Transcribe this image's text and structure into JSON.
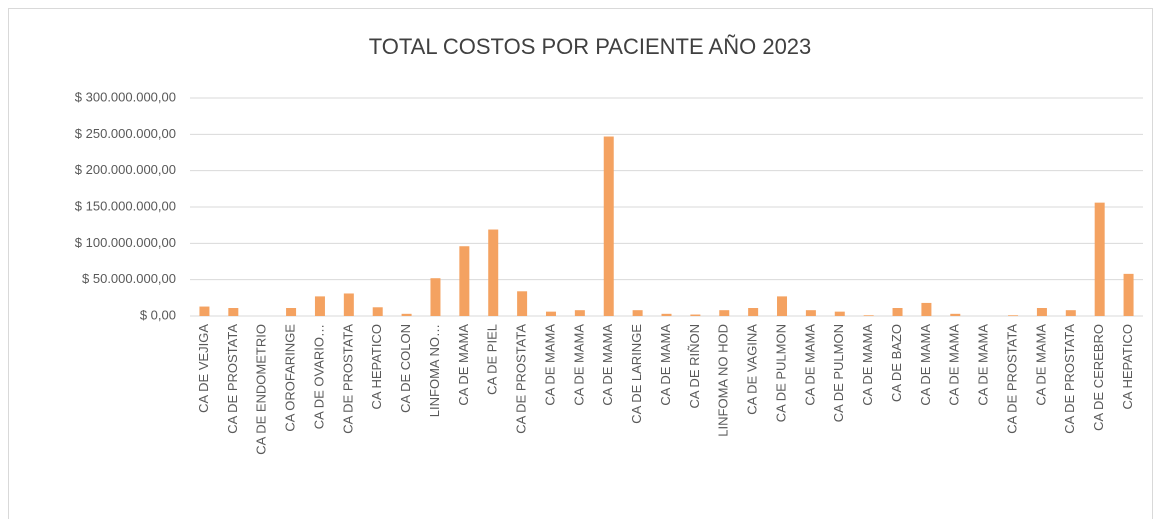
{
  "chart_data": {
    "type": "bar",
    "title": "TOTAL COSTOS POR PACIENTE AÑO 2023",
    "categories": [
      "CA DE VEJIGA",
      "CA DE PROSTATA",
      "CA DE ENDOMETRIO",
      "CA OROFARINGE",
      "CA DE OVARIO…",
      "CA DE PROSTATA",
      "CA HEPATICO",
      "CA DE COLON",
      "LINFOMA NO…",
      "CA DE MAMA",
      "CA DE PIEL",
      "CA DE PROSTATA",
      "CA DE MAMA",
      "CA DE MAMA",
      "CA DE MAMA",
      "CA DE LARINGE",
      "CA DE MAMA",
      "CA DE RIÑON",
      "LINFOMA NO HOD",
      "CA DE VAGINA",
      "CA DE PULMON",
      "CA DE MAMA",
      "CA DE PULMON",
      "CA DE MAMA",
      "CA DE BAZO",
      "CA DE MAMA",
      "CA DE MAMA",
      "CA DE MAMA",
      "CA DE PROSTATA",
      "CA DE MAMA",
      "CA DE PROSTATA",
      "CA DE CEREBRO",
      "CA HEPATICO"
    ],
    "values": [
      13000000,
      11000000,
      0,
      11000000,
      27000000,
      31000000,
      12000000,
      3000000,
      52000000,
      96000000,
      119000000,
      34000000,
      6000000,
      8000000,
      247000000,
      8000000,
      3000000,
      2000000,
      8000000,
      11000000,
      27000000,
      8000000,
      6000000,
      1000000,
      11000000,
      18000000,
      3000000,
      0,
      1000000,
      11000000,
      8000000,
      156000000,
      58000000
    ],
    "color": "#f4a261",
    "ylim": [
      0,
      300000000
    ],
    "yticks": [
      {
        "value": 0,
        "label": "$ 0,00"
      },
      {
        "value": 50000000,
        "label": "$ 50.000.000,00"
      },
      {
        "value": 100000000,
        "label": "$ 100.000.000,00"
      },
      {
        "value": 150000000,
        "label": "$ 150.000.000,00"
      },
      {
        "value": 200000000,
        "label": "$ 200.000.000,00"
      },
      {
        "value": 250000000,
        "label": "$ 250.000.000,00"
      },
      {
        "value": 300000000,
        "label": "$ 300.000.000,00"
      }
    ],
    "grid": true
  }
}
